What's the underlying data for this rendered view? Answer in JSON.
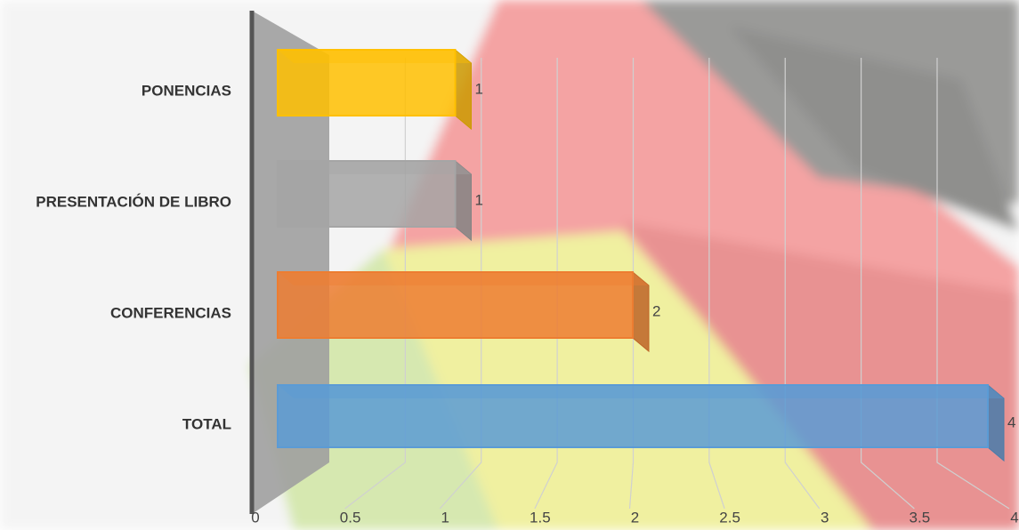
{
  "chart_data": {
    "type": "bar",
    "orientation": "horizontal",
    "categories": [
      "PONENCIAS",
      "PRESENTACIÓN DE LIBRO",
      "CONFERENCIAS",
      "TOTAL"
    ],
    "values": [
      1,
      1,
      2,
      4
    ],
    "colors": [
      "#ffc000",
      "#a5a5a5",
      "#ed7d31",
      "#5b9bd5"
    ],
    "xlim": [
      0,
      4
    ],
    "xticks": [
      0,
      0.5,
      1,
      1.5,
      2,
      2.5,
      3,
      3.5,
      4
    ],
    "grid": true
  }
}
